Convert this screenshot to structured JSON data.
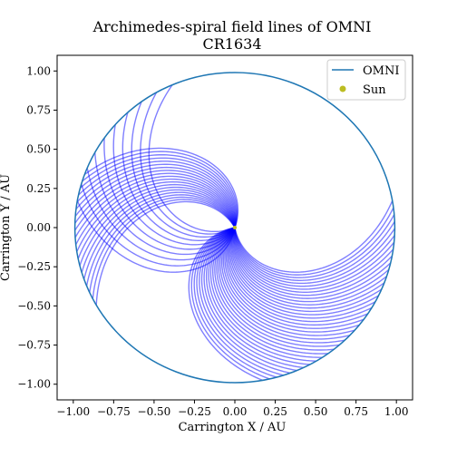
{
  "chart_data": {
    "type": "line",
    "title": "Archimedes-spiral field lines of OMNI",
    "subtitle": "CR1634",
    "xlabel": "Carrington X / AU",
    "ylabel": "Carrington Y / AU",
    "xlim": [
      -1.1,
      1.1
    ],
    "ylim": [
      -1.1,
      1.1
    ],
    "xticks": [
      -1.0,
      -0.75,
      -0.5,
      -0.25,
      0.0,
      0.25,
      0.5,
      0.75,
      1.0
    ],
    "yticks": [
      -1.0,
      -0.75,
      -0.5,
      -0.25,
      0.0,
      0.25,
      0.5,
      0.75,
      1.0
    ],
    "xtick_labels": [
      "−1.00",
      "−0.75",
      "−0.50",
      "−0.25",
      "0.00",
      "0.25",
      "0.50",
      "0.75",
      "1.00"
    ],
    "ytick_labels": [
      "−1.00",
      "−0.75",
      "−0.50",
      "−0.25",
      "0.00",
      "0.25",
      "0.50",
      "0.75",
      "1.00"
    ],
    "grid": false,
    "legend_position": "top-right",
    "series": [
      {
        "name": "OMNI",
        "kind": "circle",
        "radius_au": 0.99,
        "color": "#1f77b4"
      },
      {
        "name": "Sun",
        "kind": "point",
        "x": 0.0,
        "y": 0.0,
        "color": "#bcbd22"
      }
    ],
    "field_lines": {
      "color": "#0000ff",
      "opacity": 0.5,
      "groups": [
        {
          "start_angle_deg": 170,
          "end_angle_deg": 113,
          "count": 10,
          "sense": "ccw"
        },
        {
          "start_angle_deg": 10,
          "end_angle_deg": -80,
          "count": 36,
          "sense": "cw"
        },
        {
          "start_angle_deg": 210,
          "end_angle_deg": 160,
          "count": 20,
          "sense": "cw"
        }
      ]
    }
  }
}
